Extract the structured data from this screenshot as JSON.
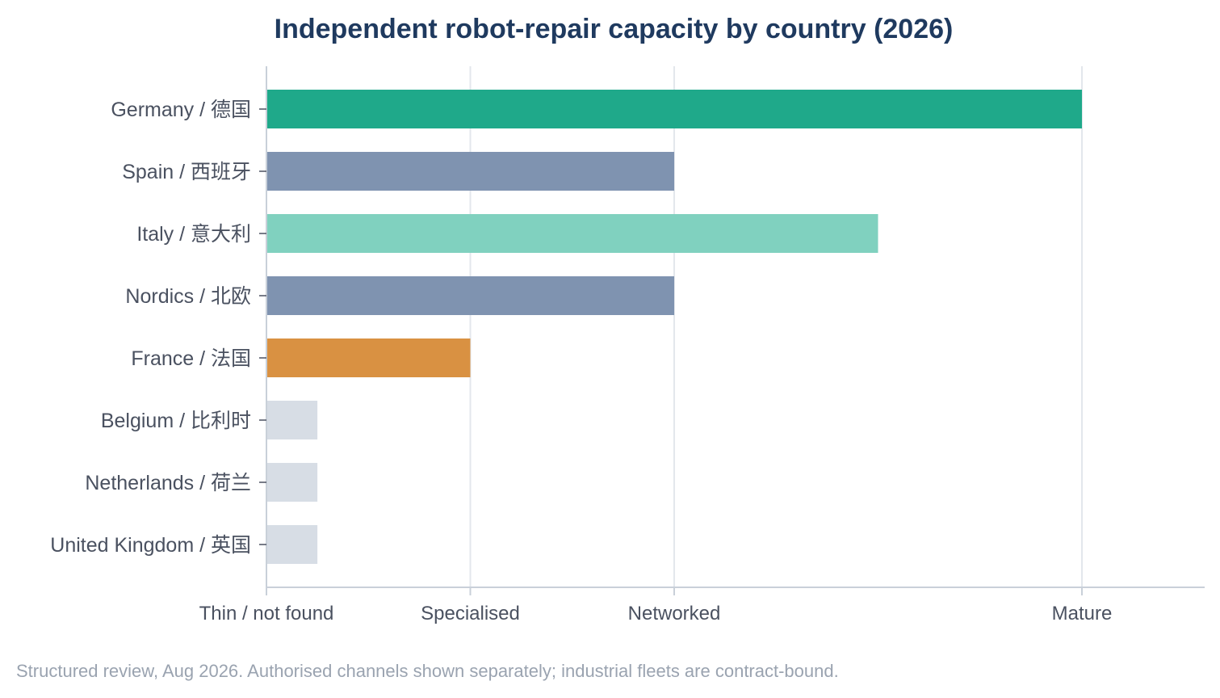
{
  "chart_data": {
    "type": "bar",
    "orientation": "horizontal",
    "title": "Independent robot-repair capacity by country (2026)",
    "footnote": "Structured review, Aug 2026. Authorised channels shown separately; industrial fleets are contract-bound.",
    "categories": [
      "Germany / 德国",
      "Spain / 西班牙",
      "Italy / 意大利",
      "Nordics / 北欧",
      "France / 法国",
      "Belgium / 比利时",
      "Netherlands / 荷兰",
      "United Kingdom / 英国"
    ],
    "values": [
      4,
      2,
      3,
      2,
      1,
      0.25,
      0.25,
      0.25
    ],
    "colors": [
      "#1fa98a",
      "#7f93b0",
      "#80d1bf",
      "#7f93b0",
      "#d99142",
      "#d7dde5",
      "#d7dde5",
      "#d7dde5"
    ],
    "x_ticks": [
      {
        "value": 0,
        "label": "Thin / not found"
      },
      {
        "value": 1,
        "label": "Specialised"
      },
      {
        "value": 2,
        "label": "Networked"
      },
      {
        "value": 4,
        "label": "Mature"
      }
    ],
    "xlim": [
      0,
      4.6
    ],
    "grid": true,
    "legend": "none"
  },
  "colors": {
    "title": "#1f3a5f",
    "grid": "#e3e7ec",
    "axis": "#c9d0d9",
    "label": "#4a5160",
    "footnote": "#9aa3b0"
  }
}
